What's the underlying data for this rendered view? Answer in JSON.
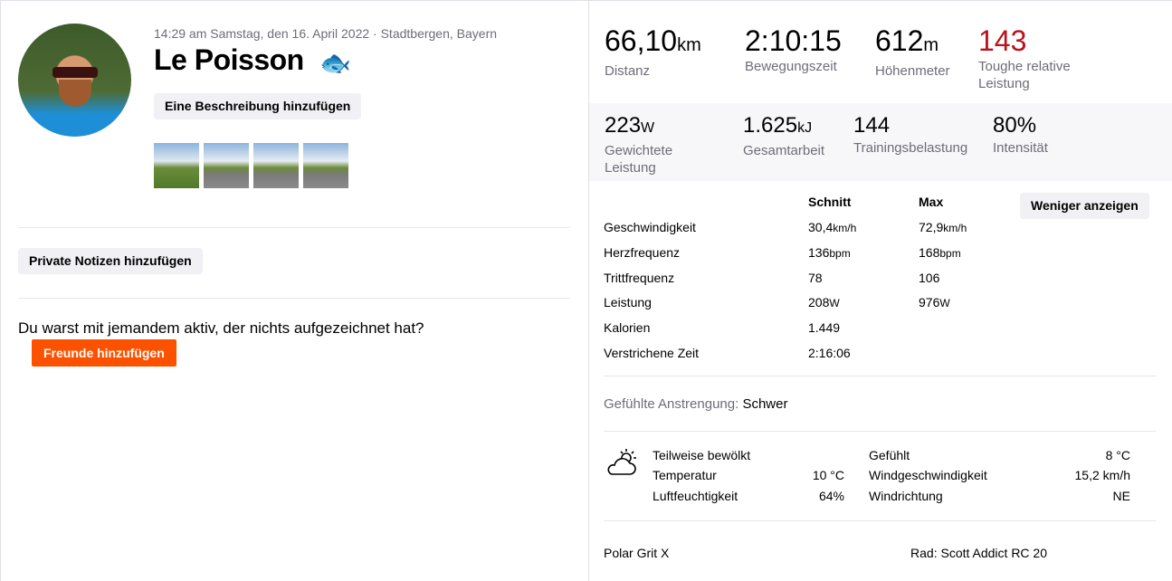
{
  "activity": {
    "meta": "14:29 am Samstag, den 16. April 2022 · Stadtbergen, Bayern",
    "title": "Le Poisson",
    "title_icon": "fish-icon",
    "add_description": "Eine Beschreibung hinzufügen",
    "photo_count": 4
  },
  "notes": {
    "add_private_notes": "Private Notizen hinzufügen"
  },
  "friends": {
    "prompt": "Du warst mit jemandem aktiv, der nichts aufgezeichnet hat?",
    "button": "Freunde hinzufügen",
    "color": "#fc5200"
  },
  "stats_primary": [
    {
      "value": "66,10",
      "unit": "km",
      "label": "Distanz"
    },
    {
      "value": "2:10:15",
      "unit": "",
      "label": "Bewegungszeit"
    },
    {
      "value": "612",
      "unit": "m",
      "label": "Höhenmeter"
    },
    {
      "value": "143",
      "unit": "",
      "label": "Toughe relative Leistung",
      "color": "#b8121b"
    }
  ],
  "stats_secondary": [
    {
      "value": "223",
      "unit": "W",
      "label": "Gewichtete Leistung"
    },
    {
      "value": "1.625",
      "unit": "kJ",
      "label": "Gesamtarbeit"
    },
    {
      "value": "144",
      "unit": "",
      "label": "Trainingsbelastung"
    },
    {
      "value": "80%",
      "unit": "",
      "label": "Intensität"
    }
  ],
  "details": {
    "col_avg": "Schnitt",
    "col_max": "Max",
    "show_less": "Weniger anzeigen",
    "rows": [
      {
        "label": "Geschwindigkeit",
        "avg": "30,4",
        "avg_unit": "km/h",
        "max": "72,9",
        "max_unit": "km/h"
      },
      {
        "label": "Herzfrequenz",
        "avg": "136",
        "avg_unit": "bpm",
        "max": "168",
        "max_unit": "bpm"
      },
      {
        "label": "Trittfrequenz",
        "avg": "78",
        "avg_unit": "",
        "max": "106",
        "max_unit": ""
      },
      {
        "label": "Leistung",
        "avg": "208",
        "avg_unit": "W",
        "max": "976",
        "max_unit": "W"
      },
      {
        "label": "Kalorien",
        "avg": "1.449",
        "avg_unit": "",
        "max": "",
        "max_unit": ""
      },
      {
        "label": "Verstrichene Zeit",
        "avg": "2:16:06",
        "avg_unit": "",
        "max": "",
        "max_unit": ""
      }
    ]
  },
  "effort": {
    "label": "Gefühlte Anstrengung:",
    "value": "Schwer"
  },
  "weather": {
    "icon": "partly-cloudy-icon",
    "condition": "Teilweise bewölkt",
    "temp_label": "Temperatur",
    "temp": "10 °C",
    "humidity_label": "Luftfeuchtigkeit",
    "humidity": "64%",
    "feels_label": "Gefühlt",
    "feels": "8 °C",
    "wind_speed_label": "Windgeschwindigkeit",
    "wind_speed": "15,2 km/h",
    "wind_dir_label": "Windrichtung",
    "wind_dir": "NE"
  },
  "gear": {
    "device": "Polar Grit X",
    "bike": "Rad: Scott Addict RC 20"
  }
}
